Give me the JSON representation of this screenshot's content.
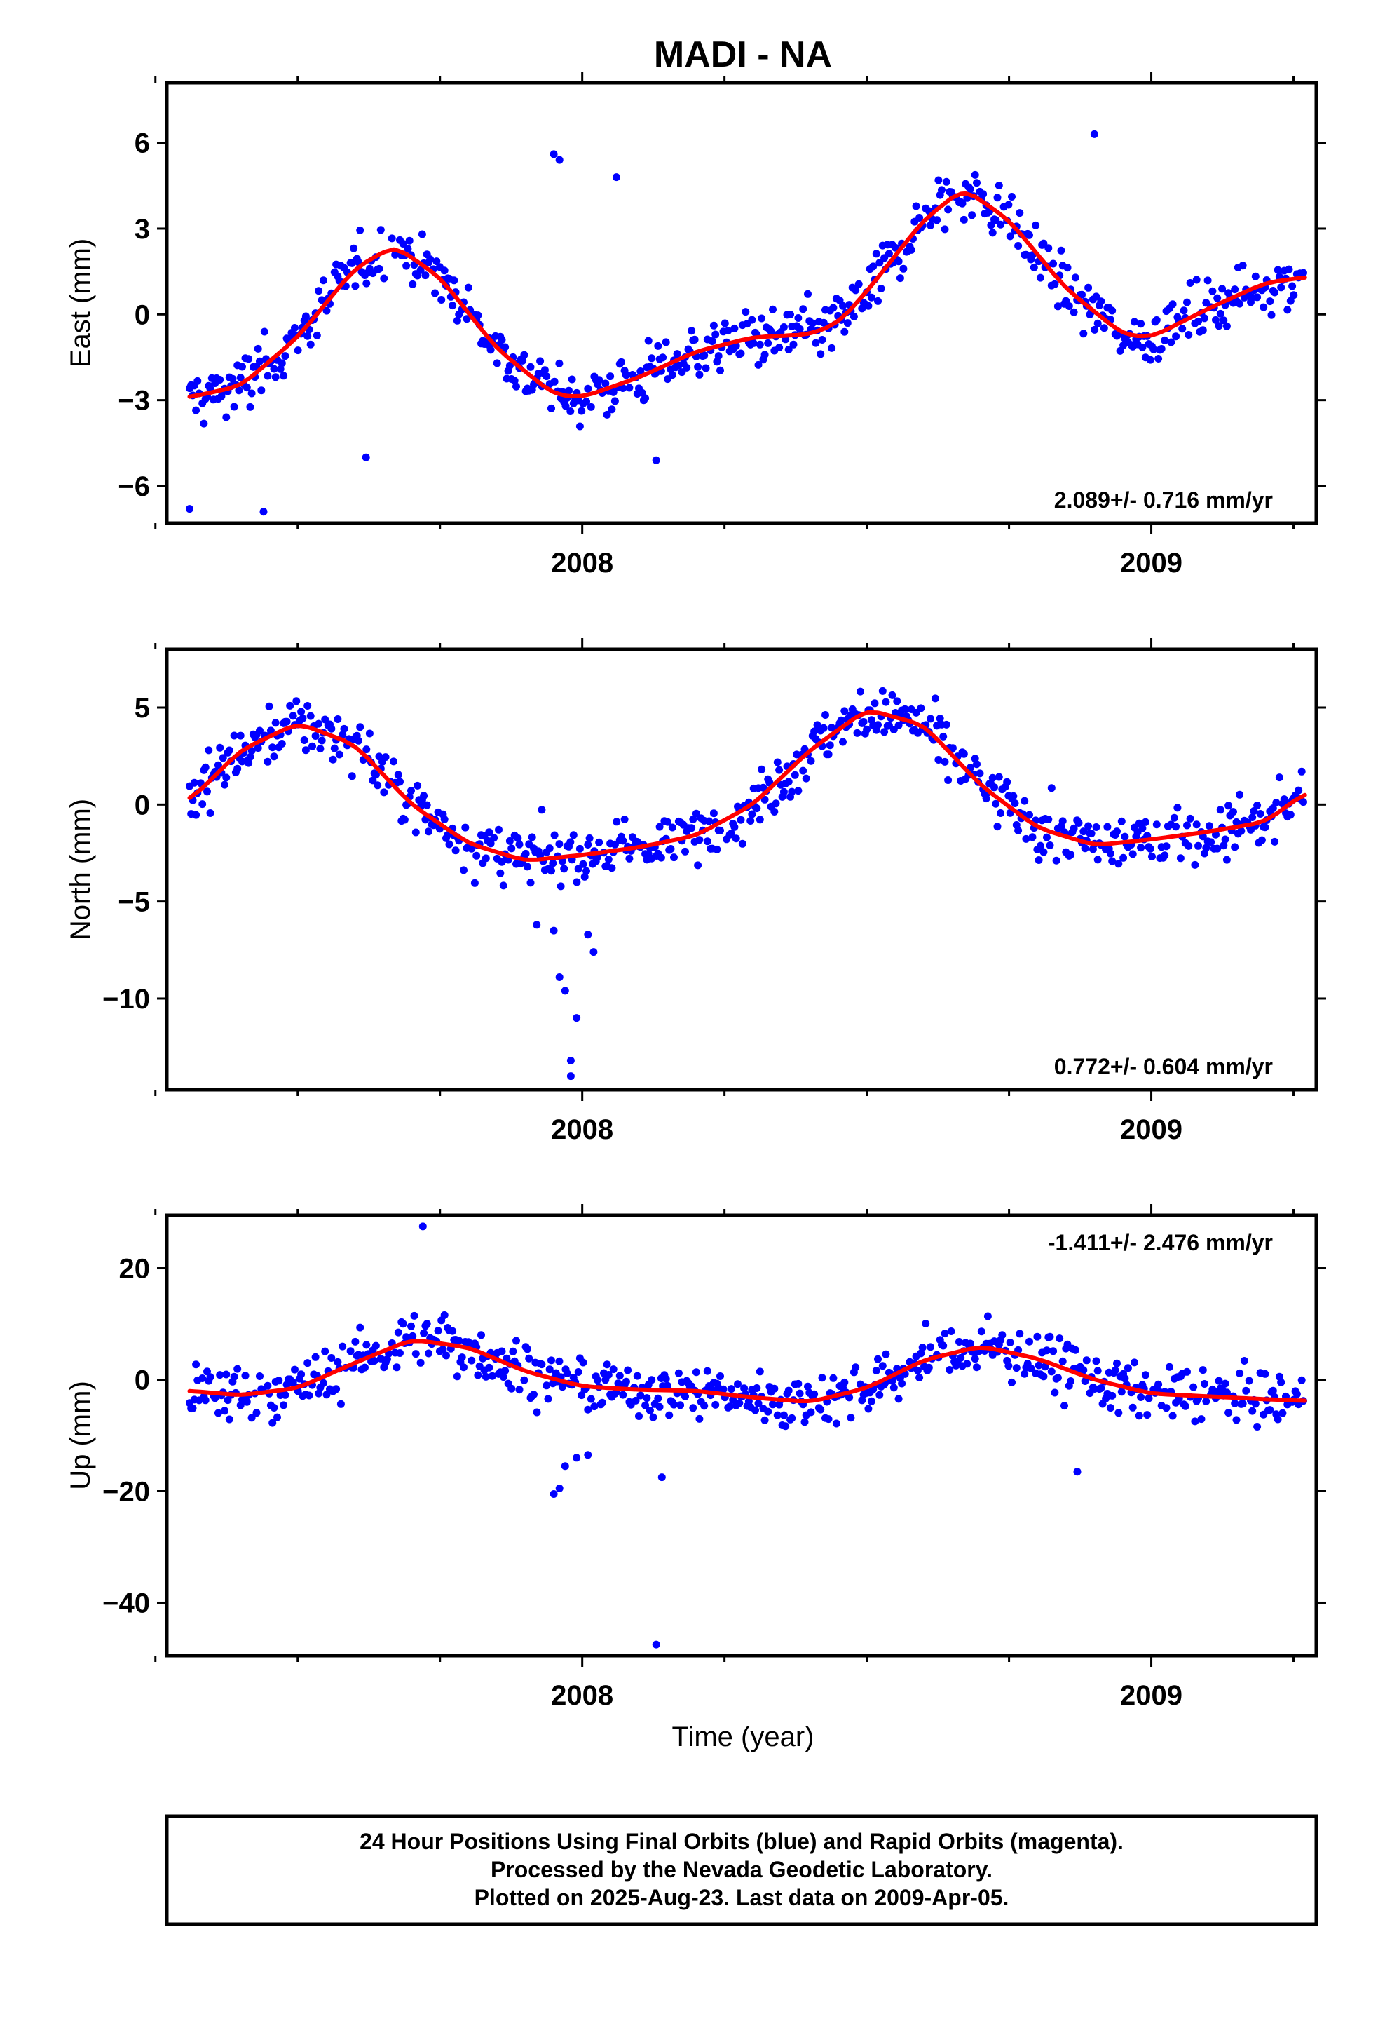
{
  "chart_data": {
    "title": "MADI - NA",
    "xlabel": "Time (year)",
    "x_range": [
      2007.27,
      2009.29
    ],
    "x_ticks": [
      {
        "value": 2008,
        "label": "2008"
      },
      {
        "value": 2009,
        "label": "2009"
      }
    ],
    "x_minor_ticks": [
      2007.25,
      2007.5,
      2007.75,
      2008.25,
      2008.5,
      2008.75,
      2009.25
    ],
    "point_color": "#0000ff",
    "fit_color": "#ff0000",
    "panels": [
      {
        "type": "scatter",
        "ylabel": "East (mm)",
        "ylim": [
          -7.3,
          8.1
        ],
        "yticks": [
          {
            "value": -6,
            "label": "−6"
          },
          {
            "value": -3,
            "label": "−3"
          },
          {
            "value": 0,
            "label": "0"
          },
          {
            "value": 3,
            "label": "3"
          },
          {
            "value": 6,
            "label": "6"
          }
        ],
        "rate": "2.089+/- 0.716 mm/yr",
        "rate_position": "bottom-right",
        "fit": {
          "x": [
            2007.31,
            2007.4,
            2007.5,
            2007.6,
            2007.67,
            2007.75,
            2007.85,
            2007.95,
            2008.0,
            2008.1,
            2008.2,
            2008.3,
            2008.4,
            2008.45,
            2008.5,
            2008.6,
            2008.67,
            2008.75,
            2008.85,
            2008.95,
            2009.0,
            2009.1,
            2009.2,
            2009.27
          ],
          "y": [
            -2.9,
            -2.5,
            -0.8,
            1.6,
            2.4,
            1.3,
            -1.2,
            -2.8,
            -2.9,
            -2.2,
            -1.3,
            -0.8,
            -0.7,
            -0.3,
            0.8,
            3.3,
            4.4,
            3.3,
            0.9,
            -0.7,
            -0.8,
            0.2,
            1.1,
            1.3
          ]
        },
        "outliers": {
          "x": [
            2007.31,
            2007.44,
            2007.62,
            2007.95,
            2007.96,
            2008.06,
            2008.13,
            2008.9
          ],
          "y": [
            -6.8,
            -6.9,
            -5.0,
            5.6,
            5.4,
            4.8,
            -5.1,
            6.3
          ]
        }
      },
      {
        "type": "scatter",
        "ylabel": "North (mm)",
        "ylim": [
          -14.7,
          8.0
        ],
        "yticks": [
          {
            "value": -10,
            "label": "−10"
          },
          {
            "value": -5,
            "label": "−5"
          },
          {
            "value": 0,
            "label": "0"
          },
          {
            "value": 5,
            "label": "5"
          }
        ],
        "rate": "0.772+/- 0.604 mm/yr",
        "rate_position": "bottom-right",
        "fit": {
          "x": [
            2007.31,
            2007.4,
            2007.5,
            2007.6,
            2007.7,
            2007.8,
            2007.9,
            2008.0,
            2008.1,
            2008.2,
            2008.3,
            2008.4,
            2008.5,
            2008.6,
            2008.7,
            2008.8,
            2008.9,
            2009.0,
            2009.1,
            2009.2,
            2009.27
          ],
          "y": [
            0.2,
            2.8,
            4.2,
            3.1,
            0.0,
            -2.0,
            -2.9,
            -2.6,
            -2.2,
            -1.6,
            0.0,
            2.8,
            4.9,
            4.1,
            1.0,
            -1.2,
            -2.1,
            -1.8,
            -1.4,
            -0.9,
            0.6
          ]
        },
        "outliers": {
          "x": [
            2007.95,
            2007.96,
            2007.97,
            2007.98,
            2007.98,
            2008.01,
            2008.02,
            2007.99,
            2007.92
          ],
          "y": [
            -6.5,
            -8.9,
            -9.6,
            -13.2,
            -14.0,
            -6.7,
            -7.6,
            -11.0,
            -6.2
          ]
        }
      },
      {
        "type": "scatter",
        "ylabel": "Up (mm)",
        "ylim": [
          -49.5,
          29.5
        ],
        "yticks": [
          {
            "value": -40,
            "label": "−40"
          },
          {
            "value": -20,
            "label": "−20"
          },
          {
            "value": 0,
            "label": "0"
          },
          {
            "value": 20,
            "label": "20"
          }
        ],
        "rate": "-1.411+/- 2.476 mm/yr",
        "rate_position": "top-right",
        "fit": {
          "x": [
            2007.31,
            2007.4,
            2007.5,
            2007.6,
            2007.7,
            2007.8,
            2007.9,
            2008.0,
            2008.1,
            2008.2,
            2008.3,
            2008.4,
            2008.5,
            2008.6,
            2008.7,
            2008.8,
            2008.9,
            2009.0,
            2009.1,
            2009.2,
            2009.27
          ],
          "y": [
            -2.0,
            -2.8,
            -1.5,
            3.0,
            7.2,
            5.8,
            1.5,
            -1.2,
            -1.8,
            -2.0,
            -3.2,
            -4.0,
            -1.5,
            3.5,
            6.0,
            3.8,
            0.0,
            -2.5,
            -3.0,
            -3.5,
            -3.8
          ]
        },
        "outliers": {
          "x": [
            2007.95,
            2007.96,
            2007.97,
            2007.99,
            2008.01,
            2008.14,
            2008.13,
            2007.72,
            2008.87
          ],
          "y": [
            -20.5,
            -19.5,
            -15.5,
            -14.0,
            -13.5,
            -17.5,
            -47.5,
            27.5,
            -16.5
          ]
        }
      }
    ]
  },
  "notes": {
    "line1": "24 Hour Positions Using Final Orbits (blue) and Rapid Orbits (magenta).",
    "line2": "Processed by the Nevada Geodetic Laboratory.",
    "line3": "Plotted on 2025-Aug-23. Last data on 2009-Apr-05."
  }
}
